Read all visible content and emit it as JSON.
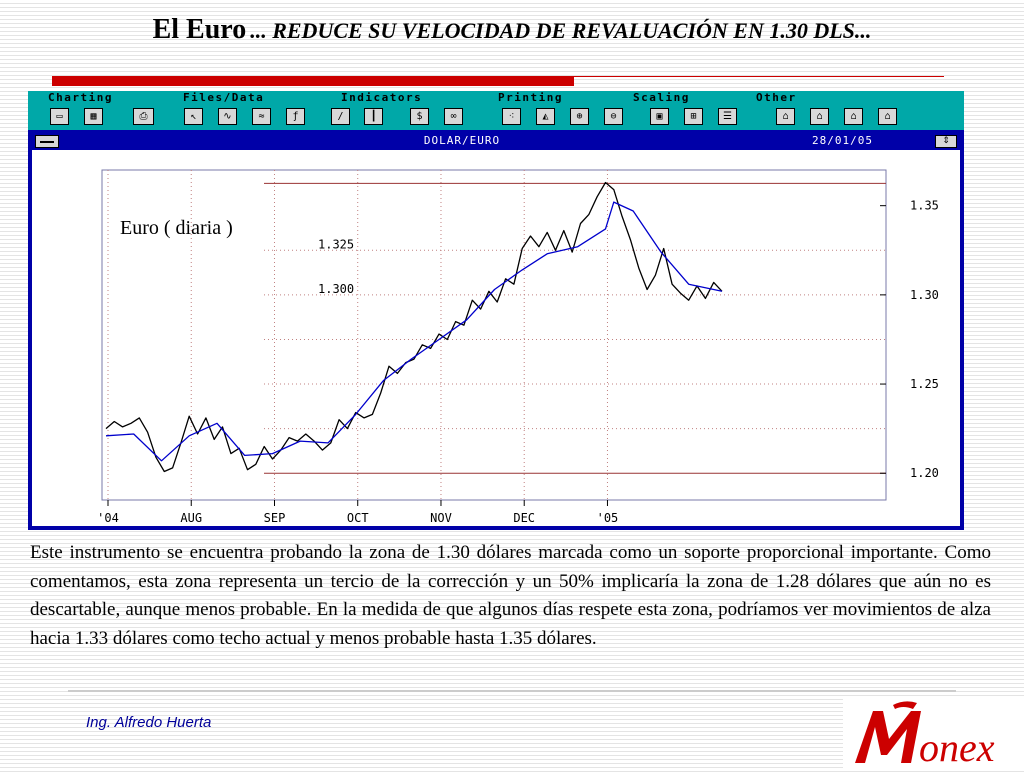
{
  "slide": {
    "title_main": "El Euro",
    "title_sub": "... REDUCE SU VELOCIDAD DE REVALUACIÓN EN 1.30 DLS...",
    "body": "Este instrumento se encuentra probando la zona de 1.30 dólares marcada como un soporte proporcional importante. Como comentamos, esta zona representa un tercio de la corrección y un 50% implicaría la zona de 1.28 dólares que aún no es descartable, aunque menos probable. En la medida de que algunos días respete esta zona, podríamos ver movimientos de alza hacia 1.33 dólares como techo actual y menos probable hasta 1.35 dólares.",
    "author": "Ing. Alfredo Huerta",
    "logo_text": "Monex",
    "accent_color": "#cc0000"
  },
  "app": {
    "menu": [
      "Charting",
      "Files/Data",
      "Indicators",
      "Printing",
      "Scaling",
      "Other"
    ],
    "toolbar_icons": [
      "open-icon",
      "save-icon",
      "print-icon",
      "pointer-icon",
      "line-icon",
      "indicator-icon",
      "function-icon",
      "trendline-icon",
      "bar-icon",
      "dollar-icon",
      "binoculars-icon",
      "pattern-icon",
      "chart-type-icon",
      "zoom-in-icon",
      "zoom-out-icon",
      "window-icon",
      "grid-icon",
      "list-icon",
      "tool1-icon",
      "tool2-icon",
      "tool3-icon",
      "tool4-icon"
    ],
    "chart_window_title": "DOLAR/EURO",
    "chart_window_date": "28/01/05",
    "background_color": "#0000a8",
    "menubar_color": "#00a8a8"
  },
  "chart_data": {
    "type": "line",
    "title": "DOLAR/EURO",
    "annotation": "Euro ( diaria )",
    "x_ticks": [
      "'04",
      "AUG",
      "SEP",
      "OCT",
      "NOV",
      "DEC",
      "'05"
    ],
    "y_ticks": [
      "1.35",
      "1.30",
      "1.25",
      "1.20"
    ],
    "ylim": [
      1.185,
      1.37
    ],
    "horizontal_lines": [
      {
        "value": 1.3625,
        "color": "#993333"
      },
      {
        "value": 1.2,
        "color": "#993333"
      }
    ],
    "level_labels": [
      {
        "text": "1.325",
        "value": 1.325
      },
      {
        "text": "1.300",
        "value": 1.3
      }
    ],
    "grid_levels": [
      1.325,
      1.3,
      1.275,
      1.25,
      1.225
    ],
    "series": [
      {
        "color": "#000000",
        "x": [
          0.0,
          0.3,
          0.6,
          0.9,
          1.2,
          1.5,
          1.8,
          2.1,
          2.4,
          2.7,
          3.0,
          3.3,
          3.6,
          3.9,
          4.2,
          4.5,
          4.8,
          5.1,
          5.4,
          5.7,
          6.0,
          6.3,
          6.6,
          6.9,
          7.2,
          7.5,
          7.8,
          8.1,
          8.4,
          8.7,
          9.0,
          9.3,
          9.6,
          9.9,
          10.2,
          10.5,
          10.8,
          11.1,
          11.4,
          11.7,
          12.0,
          12.3,
          12.6,
          12.9,
          13.2,
          13.5,
          13.8,
          14.1,
          14.4,
          14.7,
          15.0,
          15.3,
          15.6,
          15.9,
          16.2,
          16.5,
          16.8,
          17.1,
          17.4,
          17.7,
          18.0,
          18.3,
          18.6,
          18.9,
          19.2,
          19.5,
          19.8,
          20.1,
          20.4,
          20.7,
          21.0,
          21.3,
          21.6,
          21.9,
          22.2
        ],
        "values": [
          1.225,
          1.229,
          1.226,
          1.228,
          1.231,
          1.223,
          1.209,
          1.201,
          1.203,
          1.217,
          1.232,
          1.222,
          1.231,
          1.219,
          1.226,
          1.211,
          1.214,
          1.202,
          1.205,
          1.215,
          1.208,
          1.213,
          1.22,
          1.218,
          1.222,
          1.218,
          1.213,
          1.217,
          1.23,
          1.225,
          1.234,
          1.231,
          1.233,
          1.245,
          1.26,
          1.256,
          1.262,
          1.264,
          1.272,
          1.27,
          1.278,
          1.275,
          1.285,
          1.283,
          1.297,
          1.292,
          1.302,
          1.296,
          1.309,
          1.306,
          1.326,
          1.333,
          1.327,
          1.335,
          1.325,
          1.336,
          1.324,
          1.34,
          1.345,
          1.355,
          1.363,
          1.359,
          1.344,
          1.331,
          1.315,
          1.303,
          1.311,
          1.326,
          1.306,
          1.301,
          1.297,
          1.305,
          1.298,
          1.307,
          1.302
        ]
      },
      {
        "color": "#0000cc",
        "x": [
          0.0,
          1.0,
          2.0,
          3.0,
          4.0,
          5.0,
          6.0,
          7.0,
          8.0,
          9.0,
          10.0,
          11.0,
          12.0,
          13.0,
          14.0,
          15.0,
          15.9,
          17.0,
          18.0,
          18.3,
          19.0,
          20.0,
          21.0,
          22.2
        ],
        "values": [
          1.221,
          1.222,
          1.207,
          1.221,
          1.228,
          1.21,
          1.211,
          1.218,
          1.217,
          1.233,
          1.252,
          1.264,
          1.275,
          1.286,
          1.303,
          1.314,
          1.323,
          1.327,
          1.337,
          1.352,
          1.347,
          1.324,
          1.306,
          1.302
        ]
      }
    ]
  }
}
